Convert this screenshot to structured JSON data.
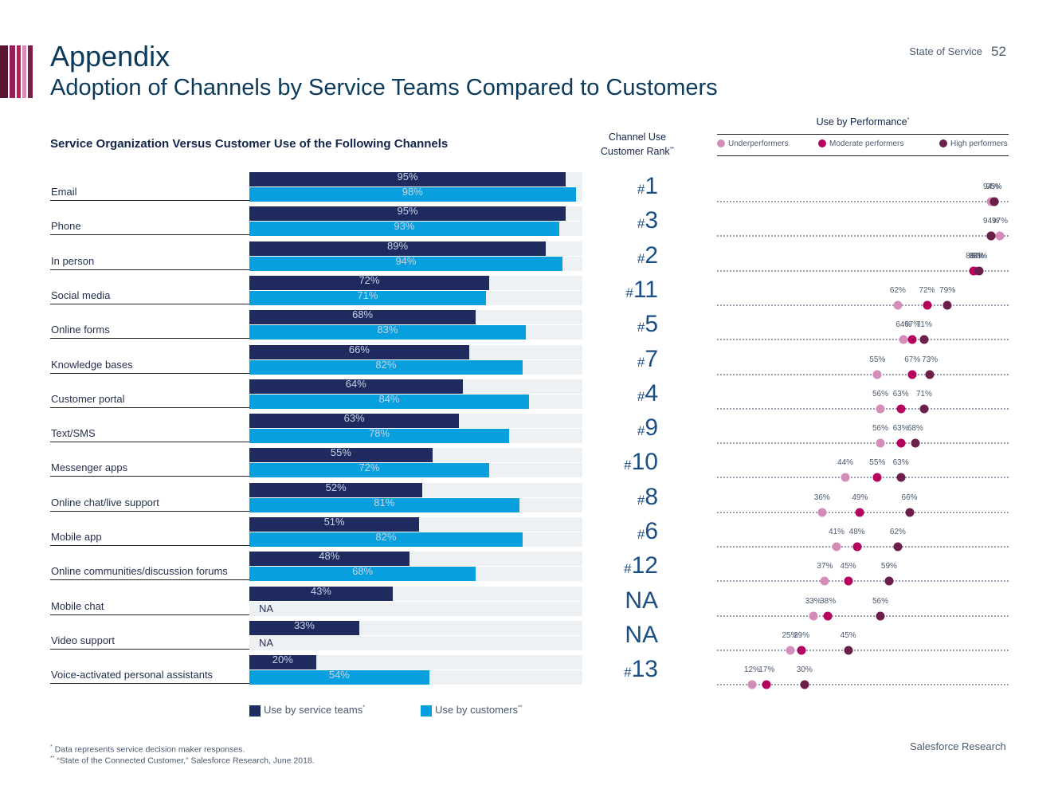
{
  "header": {
    "title": "Appendix",
    "subtitle": "Adoption of Channels by Service Teams Compared to Customers",
    "report_name": "State of Service",
    "page_number": "52"
  },
  "colors": {
    "team": "#1f2b5e",
    "customer": "#089fdf",
    "underperformers": "#d38db8",
    "moderate_performers": "#b5005e",
    "high_performers": "#6b1f4a",
    "stripes": [
      "#5a1535",
      "#9b1a5a",
      "#c2185b",
      "#d98cb3",
      "#7a1d48"
    ]
  },
  "chart_data": [
    {
      "type": "bar",
      "title": "Service Organization Versus Customer Use of the Following Channels",
      "orientation": "horizontal",
      "xlim": [
        0,
        100
      ],
      "unit": "%",
      "categories": [
        "Email",
        "Phone",
        "In person",
        "Social media",
        "Online forms",
        "Knowledge bases",
        "Customer portal",
        "Text/SMS",
        "Messenger apps",
        "Online chat/live support",
        "Mobile app",
        "Online communities/discussion forums",
        "Mobile chat",
        "Video support",
        "Voice-activated personal assistants"
      ],
      "series": [
        {
          "name": "Use by service teams",
          "marker": "*",
          "values": [
            95,
            95,
            89,
            72,
            68,
            66,
            64,
            63,
            55,
            52,
            51,
            48,
            43,
            33,
            20
          ]
        },
        {
          "name": "Use by customers",
          "marker": "**",
          "values": [
            98,
            93,
            94,
            71,
            83,
            82,
            84,
            78,
            72,
            81,
            82,
            68,
            null,
            null,
            54
          ]
        }
      ],
      "missing_label": "NA"
    },
    {
      "type": "table",
      "title": "Channel Use Customer Rank",
      "title_line1": "Channel Use",
      "title_line2": "Customer Rank",
      "title_marker": "**",
      "ranks": [
        "#1",
        "#3",
        "#2",
        "#11",
        "#5",
        "#7",
        "#4",
        "#9",
        "#10",
        "#8",
        "#6",
        "#12",
        "NA",
        "NA",
        "#13"
      ]
    },
    {
      "type": "scatter",
      "title": "Use by Performance",
      "title_marker": "*",
      "xlim": [
        0,
        100
      ],
      "unit": "%",
      "categories": [
        "Email",
        "Phone",
        "In person",
        "Social media",
        "Online forms",
        "Knowledge bases",
        "Customer portal",
        "Text/SMS",
        "Messenger apps",
        "Online chat/live support",
        "Mobile app",
        "Online communities/discussion forums",
        "Mobile chat",
        "Video support",
        "Voice-activated personal assistants"
      ],
      "series": [
        {
          "name": "Underperformers",
          "values": [
            94,
            97,
            89,
            62,
            64,
            55,
            56,
            56,
            44,
            36,
            41,
            37,
            33,
            25,
            12
          ]
        },
        {
          "name": "Moderate performers",
          "values": [
            95,
            94,
            88,
            72,
            67,
            67,
            63,
            63,
            55,
            49,
            48,
            45,
            38,
            29,
            17
          ]
        },
        {
          "name": "High performers",
          "values": [
            95,
            94,
            90,
            79,
            71,
            73,
            71,
            68,
            63,
            66,
            62,
            59,
            56,
            45,
            30
          ]
        }
      ],
      "point_labels": [
        [
          "94%",
          "95%"
        ],
        [
          "94%",
          "97%"
        ],
        [
          "88%",
          "89%",
          "90%"
        ],
        [
          "62%",
          "72%",
          "79%"
        ],
        [
          "64%",
          "67%",
          "71%"
        ],
        [
          "55%",
          "67%",
          "73%"
        ],
        [
          "56%",
          "63%",
          "71%"
        ],
        [
          "56%",
          "63%",
          "68%"
        ],
        [
          "44%",
          "55%",
          "63%"
        ],
        [
          "36%",
          "49%",
          "66%"
        ],
        [
          "41%",
          "48%",
          "62%"
        ],
        [
          "37%",
          "45%",
          "59%"
        ],
        [
          "33%",
          "38%",
          "56%"
        ],
        [
          "25%",
          "29%",
          "45%"
        ],
        [
          "12%",
          "17%",
          "30%"
        ]
      ]
    }
  ],
  "legend": {
    "team": "Use by service teams",
    "team_marker": "*",
    "customer": "Use by customers",
    "customer_marker": "**",
    "underperformers": "Underperformers",
    "moderate": "Moderate performers",
    "high": "High performers"
  },
  "footnotes": {
    "marker1": "*",
    "note1": "Data represents service decision maker responses.",
    "marker2": "**",
    "note2": "“State of the Connected Customer,” Salesforce Research, June 2018."
  },
  "source_credit": "Salesforce Research"
}
